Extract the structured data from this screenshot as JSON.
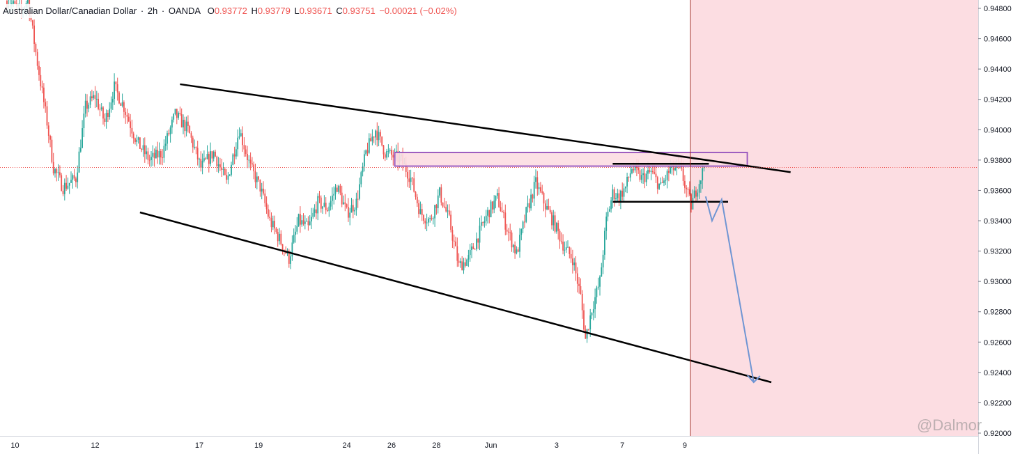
{
  "header": {
    "symbol": "Australian Dollar/Canadian Dollar",
    "interval": "2h",
    "broker": "OANDA",
    "open_label": "O",
    "open": "0.93772",
    "high_label": "H",
    "high": "0.93779",
    "low_label": "L",
    "low": "0.93671",
    "close_label": "C",
    "close": "0.93751",
    "change": "−0.00021 (−0.02%)"
  },
  "watermark": "@Dalmor",
  "colors": {
    "up": "#26a69a",
    "down": "#ef5350",
    "zone_fill": "#fcdde2",
    "zone_border": "#9c5bbf",
    "forecast": "#6f95d3",
    "current_line": "#a3201e",
    "trendline": "#000000"
  },
  "chart_data": {
    "type": "candlestick",
    "y_axis": {
      "ticks": [
        "0.94800",
        "0.94600",
        "0.94400",
        "0.94200",
        "0.94000",
        "0.93800",
        "0.93600",
        "0.93400",
        "0.93200",
        "0.93000",
        "0.92800",
        "0.92600",
        "0.92400",
        "0.92200",
        "0.92000"
      ],
      "range": [
        0.9198,
        0.949
      ],
      "current_price": 0.93751
    },
    "x_axis": {
      "labels": [
        "10",
        "12",
        "17",
        "19",
        "24",
        "26",
        "28",
        "Jun",
        "3",
        "7",
        "9"
      ]
    },
    "price_path": [
      [
        0,
        0.9485
      ],
      [
        9,
        0.9478
      ],
      [
        13,
        0.9486
      ],
      [
        19,
        0.9444
      ],
      [
        25,
        0.9405
      ],
      [
        29,
        0.9375
      ],
      [
        35,
        0.9362
      ],
      [
        43,
        0.9368
      ],
      [
        49,
        0.9415
      ],
      [
        55,
        0.9422
      ],
      [
        61,
        0.9405
      ],
      [
        67,
        0.9428
      ],
      [
        73,
        0.9415
      ],
      [
        81,
        0.9392
      ],
      [
        89,
        0.938
      ],
      [
        97,
        0.9385
      ],
      [
        105,
        0.941
      ],
      [
        113,
        0.94
      ],
      [
        121,
        0.9375
      ],
      [
        129,
        0.9385
      ],
      [
        137,
        0.9365
      ],
      [
        145,
        0.94
      ],
      [
        152,
        0.9375
      ],
      [
        158,
        0.9362
      ],
      [
        164,
        0.934
      ],
      [
        170,
        0.9328
      ],
      [
        176,
        0.9315
      ],
      [
        182,
        0.934
      ],
      [
        188,
        0.9335
      ],
      [
        194,
        0.9352
      ],
      [
        200,
        0.9348
      ],
      [
        206,
        0.9363
      ],
      [
        212,
        0.9345
      ],
      [
        218,
        0.9352
      ],
      [
        224,
        0.9385
      ],
      [
        230,
        0.94
      ],
      [
        236,
        0.9385
      ],
      [
        240,
        0.9383
      ],
      [
        246,
        0.938
      ],
      [
        252,
        0.9368
      ],
      [
        258,
        0.9345
      ],
      [
        264,
        0.934
      ],
      [
        270,
        0.9358
      ],
      [
        276,
        0.934
      ],
      [
        282,
        0.931
      ],
      [
        288,
        0.9315
      ],
      [
        294,
        0.933
      ],
      [
        300,
        0.9345
      ],
      [
        306,
        0.9355
      ],
      [
        312,
        0.9335
      ],
      [
        318,
        0.9318
      ],
      [
        324,
        0.9345
      ],
      [
        330,
        0.9365
      ],
      [
        336,
        0.935
      ],
      [
        342,
        0.9337
      ],
      [
        348,
        0.9322
      ],
      [
        353,
        0.9315
      ],
      [
        358,
        0.929
      ],
      [
        361,
        0.9262
      ],
      [
        365,
        0.9282
      ],
      [
        370,
        0.93
      ],
      [
        374,
        0.934
      ],
      [
        378,
        0.9358
      ],
      [
        382,
        0.9356
      ],
      [
        386,
        0.9362
      ],
      [
        390,
        0.9375
      ],
      [
        396,
        0.9368
      ],
      [
        402,
        0.9372
      ],
      [
        408,
        0.9362
      ],
      [
        414,
        0.9374
      ],
      [
        420,
        0.9375
      ],
      [
        424,
        0.936
      ],
      [
        427,
        0.935
      ],
      [
        430,
        0.936
      ],
      [
        435,
        0.9375
      ]
    ],
    "price_path_domain": [
      0,
      435
    ],
    "x_label_positions": [
      5,
      55,
      120,
      157,
      212,
      240,
      268,
      302,
      343,
      384,
      423
    ],
    "annotations": {
      "resistance_zone": [
        0.9376,
        0.9385
      ],
      "support_level": 0.93525,
      "pivot_level": 0.93775,
      "upper_trendline": [
        [
          108,
          0.943
        ],
        [
          489,
          0.9372
        ]
      ],
      "lower_trendline": [
        [
          83,
          0.93455
        ],
        [
          477,
          0.92335
        ]
      ],
      "forecast_path": [
        [
          436,
          0.9356
        ],
        [
          440,
          0.934
        ],
        [
          446,
          0.9354
        ],
        [
          466,
          0.92335
        ]
      ]
    }
  }
}
